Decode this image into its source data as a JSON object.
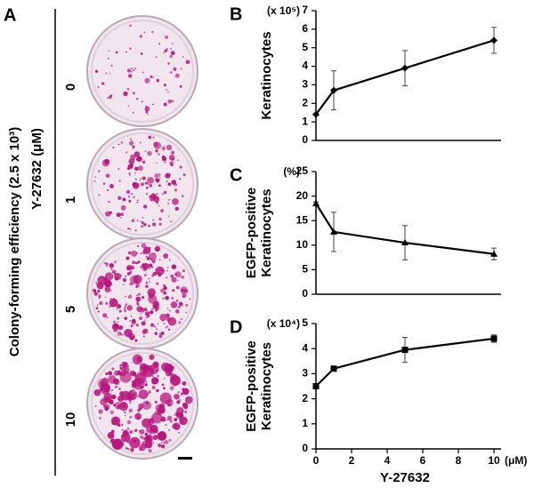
{
  "panel_a": {
    "label": "A",
    "ylabel": "Colony-forming efficiency (2.5 x 10³)",
    "dose_label": "Y-27632 (μM)",
    "doses": [
      "0",
      "1",
      "5",
      "10"
    ]
  },
  "chart_data": [
    {
      "type": "line",
      "label": "B",
      "unit": "(x 10⁵)",
      "ylabel": [
        "Keratinocytes"
      ],
      "marker": "diamond",
      "color": "#000000",
      "x": [
        0,
        1,
        5,
        10
      ],
      "values": [
        1.4,
        2.7,
        3.9,
        5.4
      ],
      "errors": [
        0.05,
        1.05,
        0.95,
        0.7
      ],
      "xlim": [
        0,
        10
      ],
      "ylim": [
        0,
        7
      ],
      "yticks": [
        0,
        1,
        2,
        3,
        4,
        5,
        6,
        7
      ]
    },
    {
      "type": "line",
      "label": "C",
      "unit": "(%)",
      "ylabel": [
        "EGFP-positive",
        "Keratinocytes"
      ],
      "marker": "triangle",
      "color": "#000000",
      "x": [
        0,
        1,
        5,
        10
      ],
      "values": [
        18.5,
        12.7,
        10.5,
        8.2
      ],
      "errors": [
        0.3,
        4,
        3.5,
        1.2
      ],
      "xlim": [
        0,
        10
      ],
      "ylim": [
        0,
        25
      ],
      "yticks": [
        0,
        5,
        10,
        15,
        20,
        25
      ]
    },
    {
      "type": "line",
      "label": "D",
      "unit": "(x 10⁴)",
      "ylabel": [
        "EGFP-positive",
        "Keratinocytes"
      ],
      "marker": "square",
      "color": "#000000",
      "x": [
        0,
        1,
        5,
        10
      ],
      "values": [
        2.5,
        3.2,
        3.95,
        4.4
      ],
      "errors": [
        0.1,
        0.05,
        0.5,
        0.15
      ],
      "xlim": [
        0,
        10
      ],
      "ylim": [
        0,
        5
      ],
      "yticks": [
        0,
        1,
        2,
        3,
        4,
        5
      ],
      "xticks": [
        0,
        2,
        4,
        6,
        8,
        10
      ],
      "xunit": "(μM)",
      "xlabel": "Y-27632"
    }
  ]
}
